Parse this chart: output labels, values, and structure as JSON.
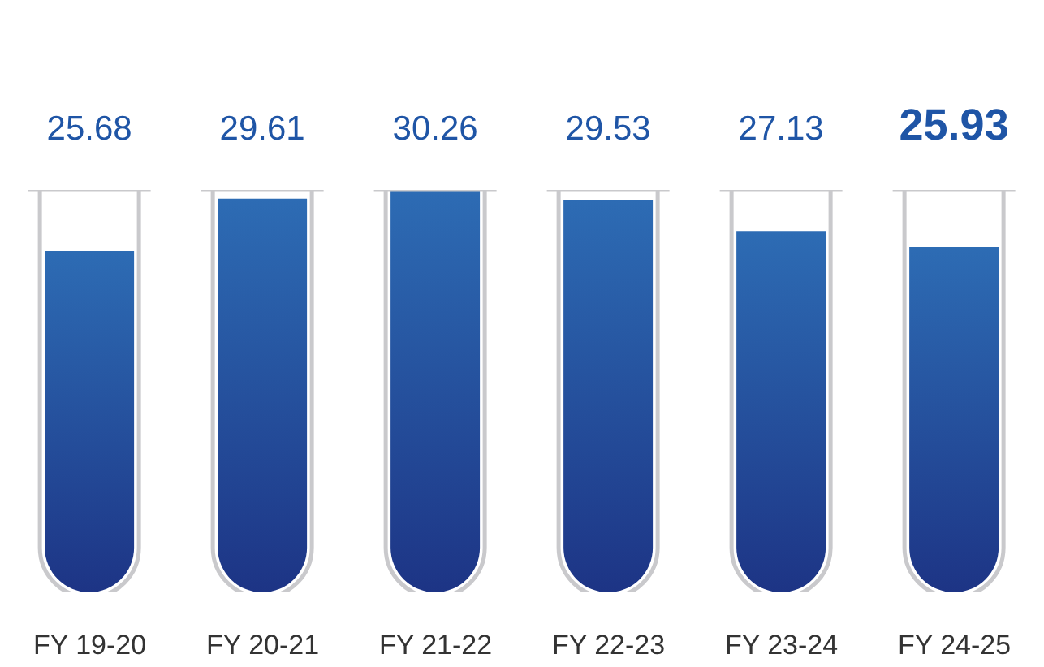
{
  "chart_data": {
    "type": "bar",
    "categories": [
      "FY 19-20",
      "FY 20-21",
      "FY 21-22",
      "FY 22-23",
      "FY 23-24",
      "FY 24-25"
    ],
    "values": [
      25.68,
      29.61,
      30.26,
      29.53,
      27.13,
      25.93
    ],
    "color": "#2264b0",
    "data_labels": true
  }
}
